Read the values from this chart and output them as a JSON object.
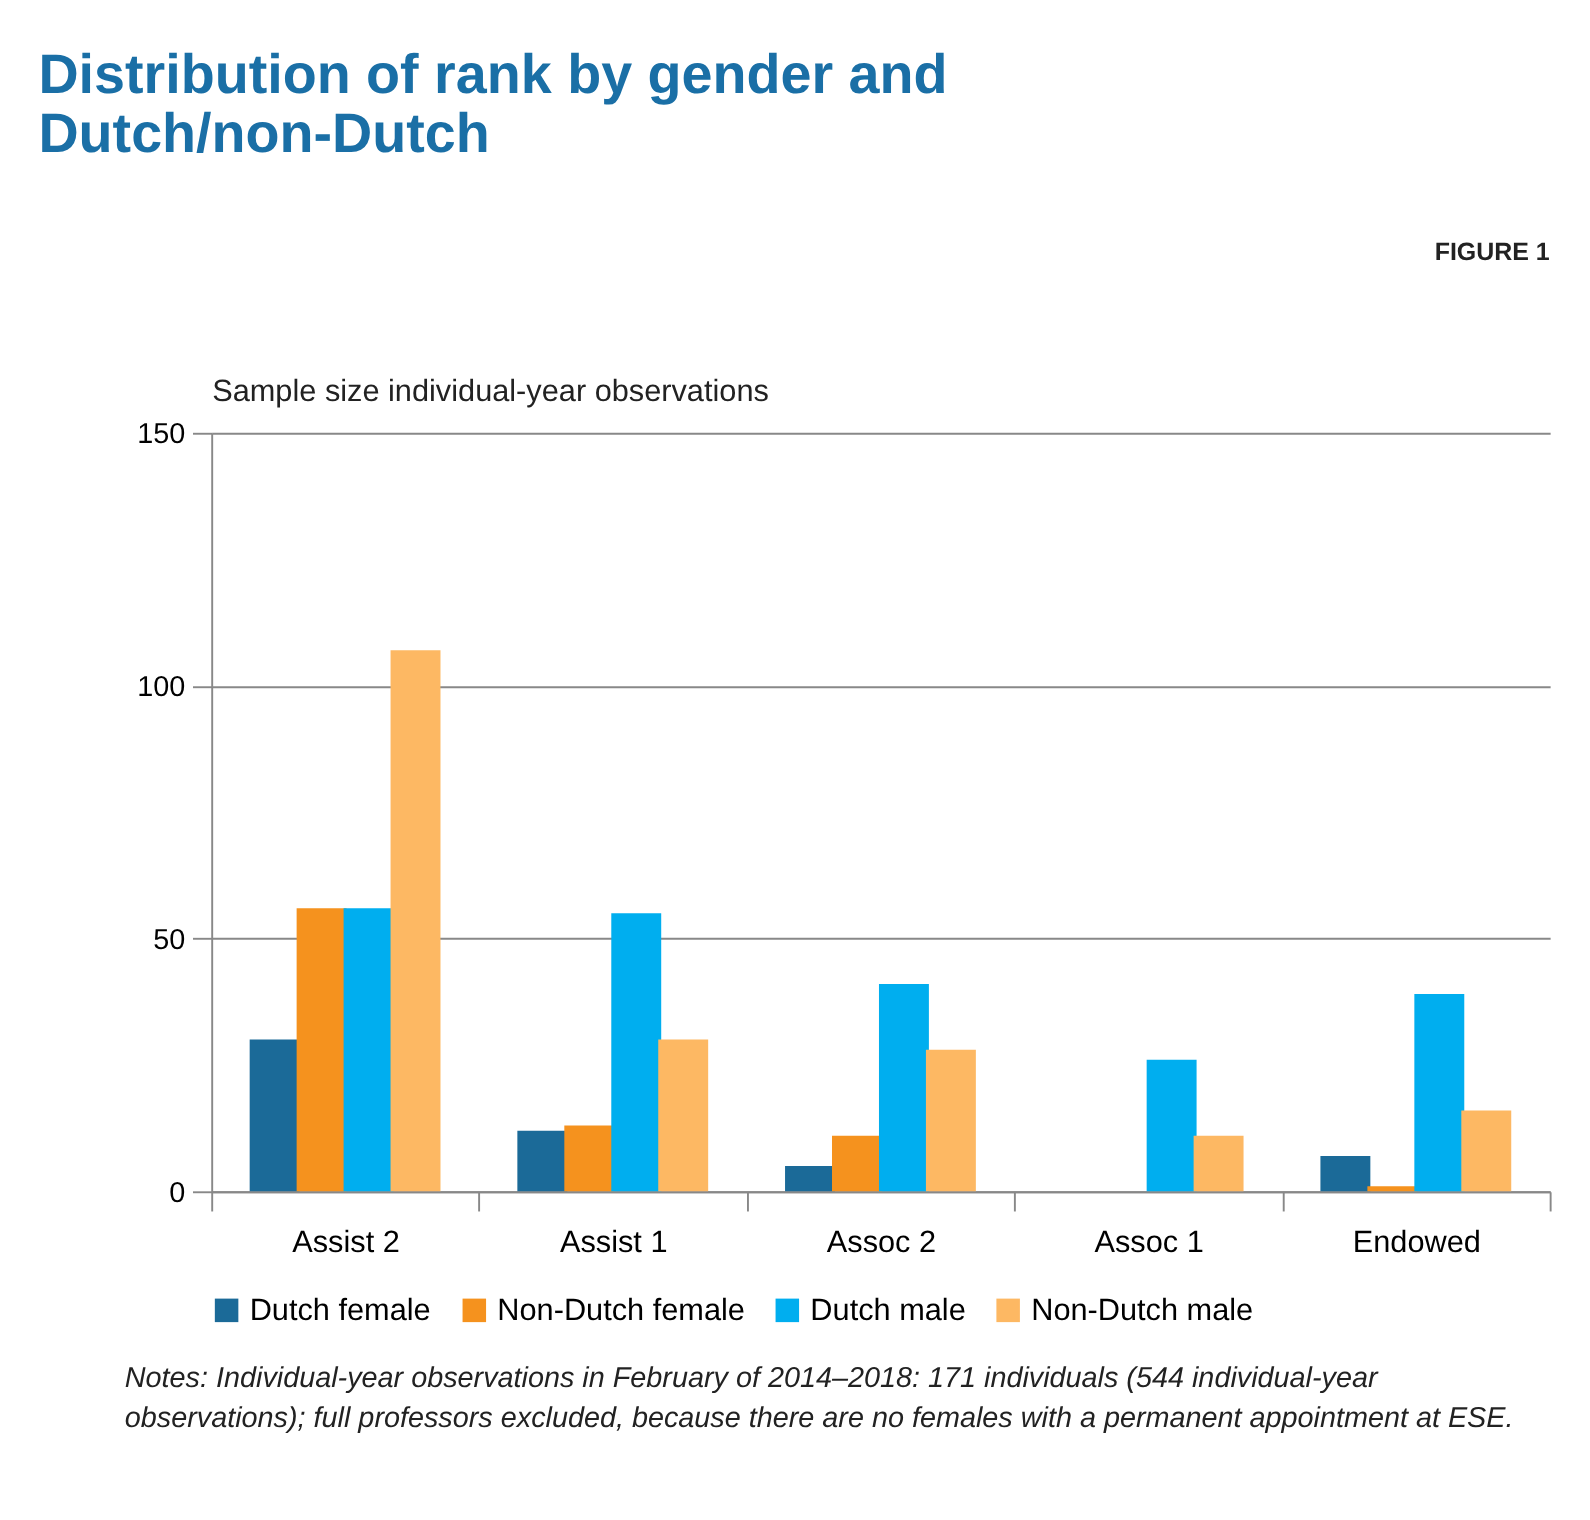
{
  "chart_data": {
    "type": "bar",
    "title": "Distribution of rank by gender and Dutch/non-Dutch",
    "ylabel": "Sample size individual-year observations",
    "categories": [
      "Assist 2",
      "Assist 1",
      "Assoc 2",
      "Assoc 1",
      "Endowed"
    ],
    "series": [
      {
        "name": "Dutch female",
        "color": "#1b6a98",
        "values": [
          30,
          12,
          5,
          0,
          7
        ]
      },
      {
        "name": "Non-Dutch female",
        "color": "#f5921e",
        "values": [
          56,
          13,
          11,
          0,
          1
        ]
      },
      {
        "name": "Dutch male",
        "color": "#00aeef",
        "values": [
          56,
          55,
          41,
          26,
          39
        ]
      },
      {
        "name": "Non-Dutch male",
        "color": "#fdb863",
        "values": [
          107,
          30,
          28,
          11,
          16
        ]
      }
    ],
    "ylim": [
      0,
      150
    ],
    "yticks": [
      0,
      50,
      100,
      150
    ],
    "grid": "y",
    "legend": "bottom",
    "annotations": [
      "FIGURE 1",
      "Notes: Individual-year observations in February of 2014–2018: 171 individuals (544 individual-year observations); full professors excluded, because there are no females with a permanent appointment at ESE."
    ]
  }
}
